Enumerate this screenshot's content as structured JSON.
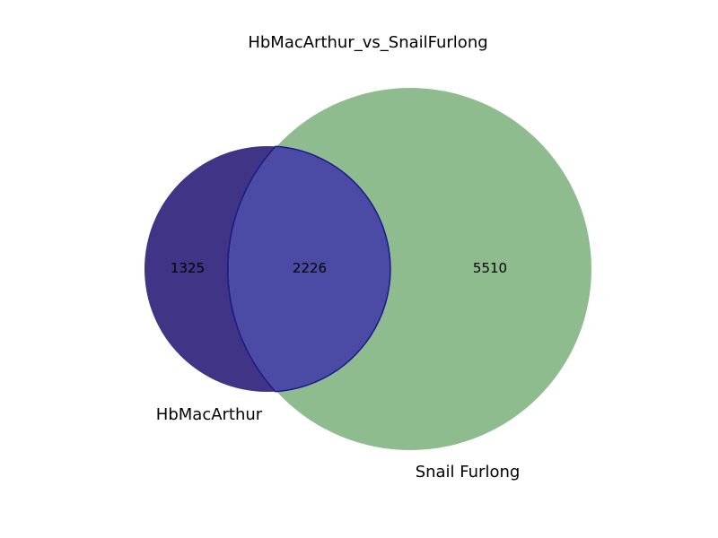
{
  "title": "HbMacArthur_vs_SnailFurlong",
  "sets": [
    {
      "name": "HbMacArthur",
      "only": 1325,
      "color": "#3f3485"
    },
    {
      "name": "Snail Furlong",
      "only": 5510,
      "color": "#8fbc8f"
    }
  ],
  "intersection": {
    "count": 2226,
    "color": "#4b4ba6",
    "outline": "#1a1a8c"
  }
}
